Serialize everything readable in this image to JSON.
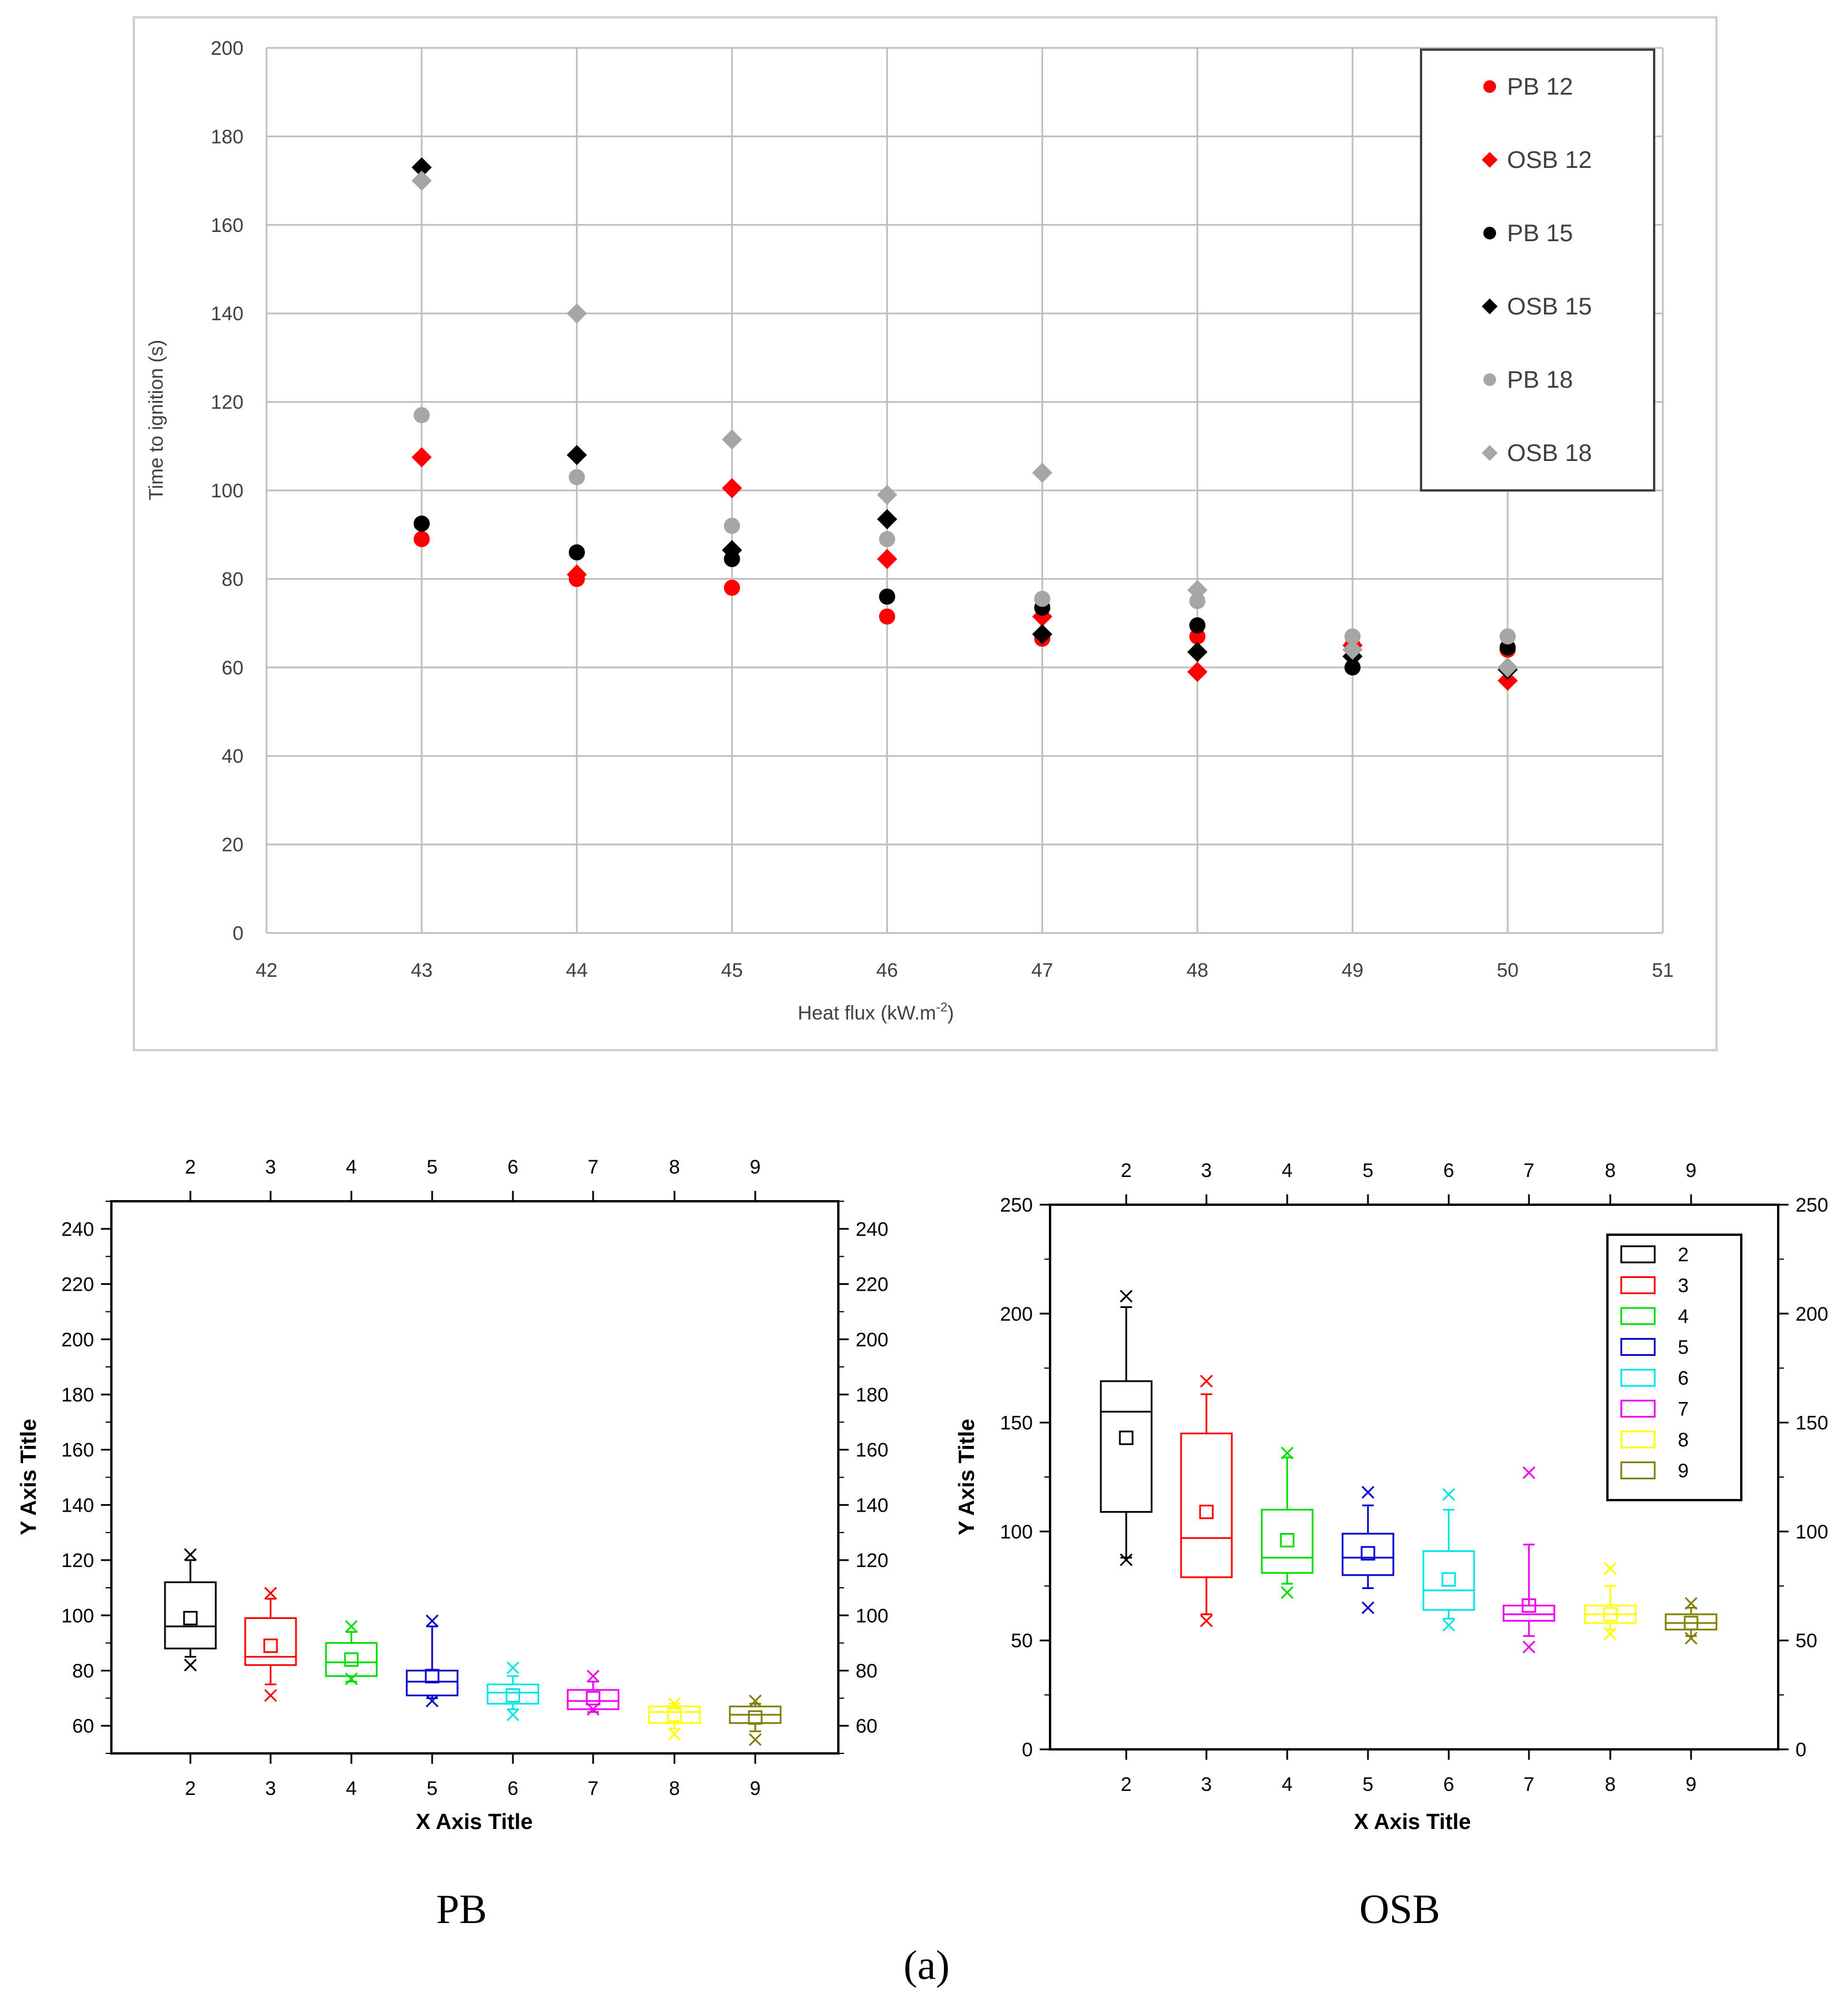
{
  "chart_data": [
    {
      "type": "scatter",
      "xlabel": "Heat flux (kW.m",
      "xlabel_sup": "-2",
      "xlabel_end": ")",
      "ylabel": "Time to ignition (s)",
      "xlim": [
        42,
        51
      ],
      "ylim": [
        0,
        200
      ],
      "x_ticks": [
        42,
        43,
        44,
        45,
        46,
        47,
        48,
        49,
        50,
        51
      ],
      "y_ticks": [
        0,
        20,
        40,
        60,
        80,
        100,
        120,
        140,
        160,
        180,
        200
      ],
      "grid": true,
      "legend_position": "top-right",
      "x": [
        43,
        44,
        45,
        46,
        47,
        48,
        49,
        50
      ],
      "series": [
        {
          "name": "PB 12",
          "marker": "circle",
          "color": "#ff0000",
          "values": [
            89,
            80,
            78,
            71.5,
            66.5,
            67,
            65,
            64
          ]
        },
        {
          "name": "OSB 12",
          "marker": "diamond",
          "color": "#ff0000",
          "values": [
            107.5,
            81,
            100.5,
            84.5,
            71.5,
            59,
            65,
            57
          ]
        },
        {
          "name": "PB 15",
          "marker": "circle",
          "color": "#000000",
          "values": [
            92.5,
            86,
            84.5,
            76,
            73.5,
            69.5,
            60,
            64.5
          ]
        },
        {
          "name": "OSB 15",
          "marker": "diamond",
          "color": "#000000",
          "values": [
            173,
            108,
            86.5,
            93.5,
            67.5,
            63.5,
            62.5,
            59.5
          ]
        },
        {
          "name": "PB 18",
          "marker": "circle",
          "color": "#a6a6a6",
          "values": [
            117,
            103,
            92,
            89,
            75.5,
            75,
            67,
            67
          ]
        },
        {
          "name": "OSB 18",
          "marker": "diamond",
          "color": "#a6a6a6",
          "values": [
            170,
            140,
            111.5,
            99,
            104,
            77.5,
            64,
            60
          ]
        }
      ]
    },
    {
      "type": "box",
      "caption": "PB",
      "xlabel": "X Axis Title",
      "ylabel": "Y Axis Title",
      "categories": [
        "2",
        "3",
        "4",
        "5",
        "6",
        "7",
        "8",
        "9"
      ],
      "ylim": [
        50,
        250
      ],
      "y_ticks": [
        60,
        80,
        100,
        120,
        140,
        160,
        180,
        200,
        220,
        240
      ],
      "boxes": [
        {
          "cat": "2",
          "color": "#000000",
          "q1": 88,
          "median": 96,
          "q3": 112,
          "mean": 99,
          "wlo": 85,
          "whi": 120,
          "min": 82,
          "max": 122
        },
        {
          "cat": "3",
          "color": "#ff0000",
          "q1": 82,
          "median": 85,
          "q3": 99,
          "mean": 89,
          "wlo": 75,
          "whi": 106,
          "min": 71,
          "max": 108
        },
        {
          "cat": "4",
          "color": "#00dd00",
          "q1": 78,
          "median": 83,
          "q3": 90,
          "mean": 84,
          "wlo": 76,
          "whi": 94,
          "min": 77,
          "max": 96
        },
        {
          "cat": "5",
          "color": "#0000cc",
          "q1": 71,
          "median": 76,
          "q3": 80,
          "mean": 78,
          "wlo": 70,
          "whi": 96,
          "min": 69,
          "max": 98
        },
        {
          "cat": "6",
          "color": "#00e5e5",
          "q1": 68,
          "median": 72,
          "q3": 75,
          "mean": 71,
          "wlo": 66,
          "whi": 78,
          "min": 64,
          "max": 81
        },
        {
          "cat": "7",
          "color": "#ee00ee",
          "q1": 66,
          "median": 69,
          "q3": 73,
          "mean": 70,
          "wlo": 65,
          "whi": 76,
          "min": 66,
          "max": 78
        },
        {
          "cat": "8",
          "color": "#ffff00",
          "q1": 61,
          "median": 65,
          "q3": 67,
          "mean": 64,
          "wlo": 59,
          "whi": 68,
          "min": 57,
          "max": 68
        },
        {
          "cat": "9",
          "color": "#808000",
          "q1": 61,
          "median": 64,
          "q3": 67,
          "mean": 63,
          "wlo": 58,
          "whi": 68,
          "min": 55,
          "max": 69
        }
      ]
    },
    {
      "type": "box",
      "caption": "OSB",
      "xlabel": "X Axis Title",
      "ylabel": "Y Axis Title",
      "categories": [
        "2",
        "3",
        "4",
        "5",
        "6",
        "7",
        "8",
        "9"
      ],
      "ylim": [
        0,
        250
      ],
      "y_ticks": [
        0,
        50,
        100,
        150,
        200,
        250
      ],
      "legend_position": "top-right",
      "boxes": [
        {
          "cat": "2",
          "color": "#000000",
          "q1": 109,
          "median": 155,
          "q3": 169,
          "mean": 143,
          "wlo": 88,
          "whi": 203,
          "min": 87,
          "max": 208
        },
        {
          "cat": "3",
          "color": "#ff0000",
          "q1": 79,
          "median": 97,
          "q3": 145,
          "mean": 109,
          "wlo": 62,
          "whi": 163,
          "min": 59,
          "max": 169
        },
        {
          "cat": "4",
          "color": "#00dd00",
          "q1": 81,
          "median": 88,
          "q3": 110,
          "mean": 96,
          "wlo": 76,
          "whi": 134,
          "min": 72,
          "max": 136
        },
        {
          "cat": "5",
          "color": "#0000cc",
          "q1": 80,
          "median": 88,
          "q3": 99,
          "mean": 90,
          "wlo": 74,
          "whi": 112,
          "min": 65,
          "max": 118
        },
        {
          "cat": "6",
          "color": "#00e5e5",
          "q1": 64,
          "median": 73,
          "q3": 91,
          "mean": 78,
          "wlo": 60,
          "whi": 110,
          "min": 57,
          "max": 117
        },
        {
          "cat": "7",
          "color": "#ee00ee",
          "q1": 59,
          "median": 62,
          "q3": 66,
          "mean": 66,
          "wlo": 52,
          "whi": 94,
          "min": 47,
          "max": 127
        },
        {
          "cat": "8",
          "color": "#ffff00",
          "q1": 58,
          "median": 62,
          "q3": 66,
          "mean": 62,
          "wlo": 55,
          "whi": 75,
          "min": 53,
          "max": 83
        },
        {
          "cat": "9",
          "color": "#808000",
          "q1": 55,
          "median": 58,
          "q3": 62,
          "mean": 58,
          "wlo": 52,
          "whi": 65,
          "min": 51,
          "max": 67
        }
      ]
    }
  ],
  "figure_label": "(a)"
}
